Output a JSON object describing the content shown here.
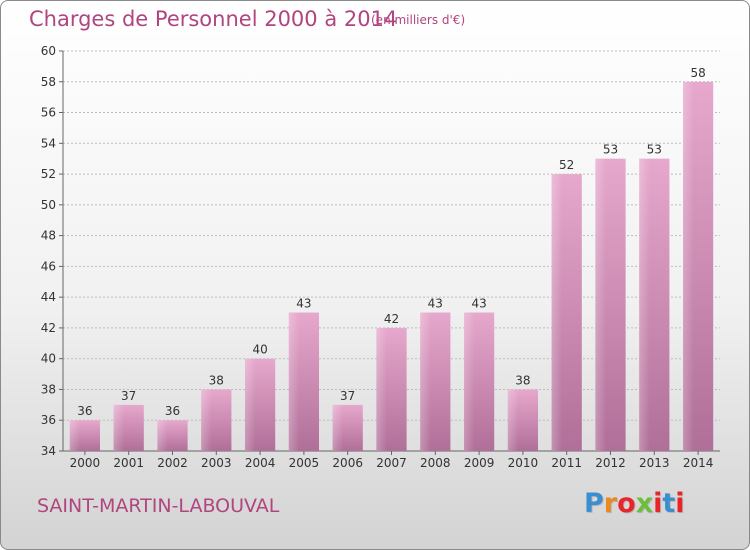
{
  "header": {
    "title": "Charges de Personnel 2000 à 2014",
    "subtitle": "(en milliers d'€)"
  },
  "footer": {
    "commune": "SAINT-MARTIN-LABOUVAL",
    "logo_text": "Proxiti",
    "logo_colors": [
      "#3a8fd0",
      "#e88a1f",
      "#e8262a",
      "#6cbf3d",
      "#e8262a",
      "#3a8fd0",
      "#e8262a"
    ]
  },
  "colors": {
    "bar_top": "#e7a8cd",
    "bar_bottom": "#b06f98",
    "title": "#b0457f",
    "grid": "#bdbdbd"
  },
  "chart_data": {
    "type": "bar",
    "title": "Charges de Personnel 2000 à 2014",
    "subtitle": "(en milliers d'€)",
    "categories": [
      "2000",
      "2001",
      "2002",
      "2003",
      "2004",
      "2005",
      "2006",
      "2007",
      "2008",
      "2009",
      "2010",
      "2011",
      "2012",
      "2013",
      "2014"
    ],
    "values": [
      36,
      37,
      36,
      38,
      40,
      43,
      37,
      42,
      43,
      43,
      38,
      52,
      53,
      53,
      58
    ],
    "ylim": [
      34,
      60
    ],
    "yticks": [
      34,
      36,
      38,
      40,
      42,
      44,
      46,
      48,
      50,
      52,
      54,
      56,
      58,
      60
    ],
    "grid": true,
    "data_labels": true
  }
}
